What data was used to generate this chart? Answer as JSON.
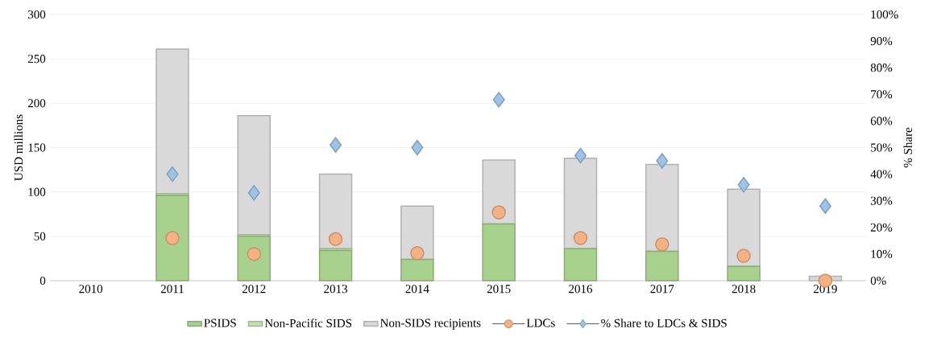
{
  "chart_data": {
    "type": "bar",
    "stacked": true,
    "ylabel": "USD millions",
    "y2label": "% Share",
    "categories": [
      "2010",
      "2011",
      "2012",
      "2013",
      "2014",
      "2015",
      "2016",
      "2017",
      "2018",
      "2019"
    ],
    "ylim": [
      0,
      300
    ],
    "yticks": [
      0,
      50,
      100,
      150,
      200,
      250,
      300
    ],
    "y2lim": [
      0,
      100
    ],
    "y2ticks": [
      {
        "value": 0,
        "label": "0%"
      },
      {
        "value": 10,
        "label": "10%"
      },
      {
        "value": 20,
        "label": "20%"
      },
      {
        "value": 30,
        "label": "30%"
      },
      {
        "value": 40,
        "label": "40%"
      },
      {
        "value": 50,
        "label": "50%"
      },
      {
        "value": 60,
        "label": "60%"
      },
      {
        "value": 70,
        "label": "70%"
      },
      {
        "value": 80,
        "label": "80%"
      },
      {
        "value": 90,
        "label": "90%"
      },
      {
        "value": 100,
        "label": "100%"
      }
    ],
    "grid": "y",
    "legend": "bottom",
    "series": [
      {
        "name": "PSIDS",
        "color": "#a9d18e",
        "values": [
          0,
          96,
          50,
          34,
          24,
          64,
          36,
          33,
          16,
          0
        ]
      },
      {
        "name": "Non-Pacific SIDS",
        "color": "#c5e0b4",
        "values": [
          0,
          2,
          2,
          2,
          null,
          null,
          null,
          null,
          null,
          0
        ]
      },
      {
        "name": "Non-SIDS recipients",
        "color": "#d9d9d9",
        "values": [
          0,
          163,
          134,
          84,
          60,
          72,
          102,
          98,
          87,
          5
        ]
      },
      {
        "name": "LDCs",
        "type": "scatter",
        "marker": "circle",
        "color": "#f4b183",
        "values": [
          null,
          48,
          30,
          47,
          31,
          77,
          48,
          41,
          28,
          0
        ]
      },
      {
        "name": "% Share to LDCs & SIDS",
        "type": "scatter",
        "marker": "diamond",
        "axis": "y2",
        "color": "#9dc3e6",
        "values": [
          null,
          40,
          33,
          51,
          50,
          68,
          47,
          45,
          36,
          28
        ]
      }
    ]
  }
}
